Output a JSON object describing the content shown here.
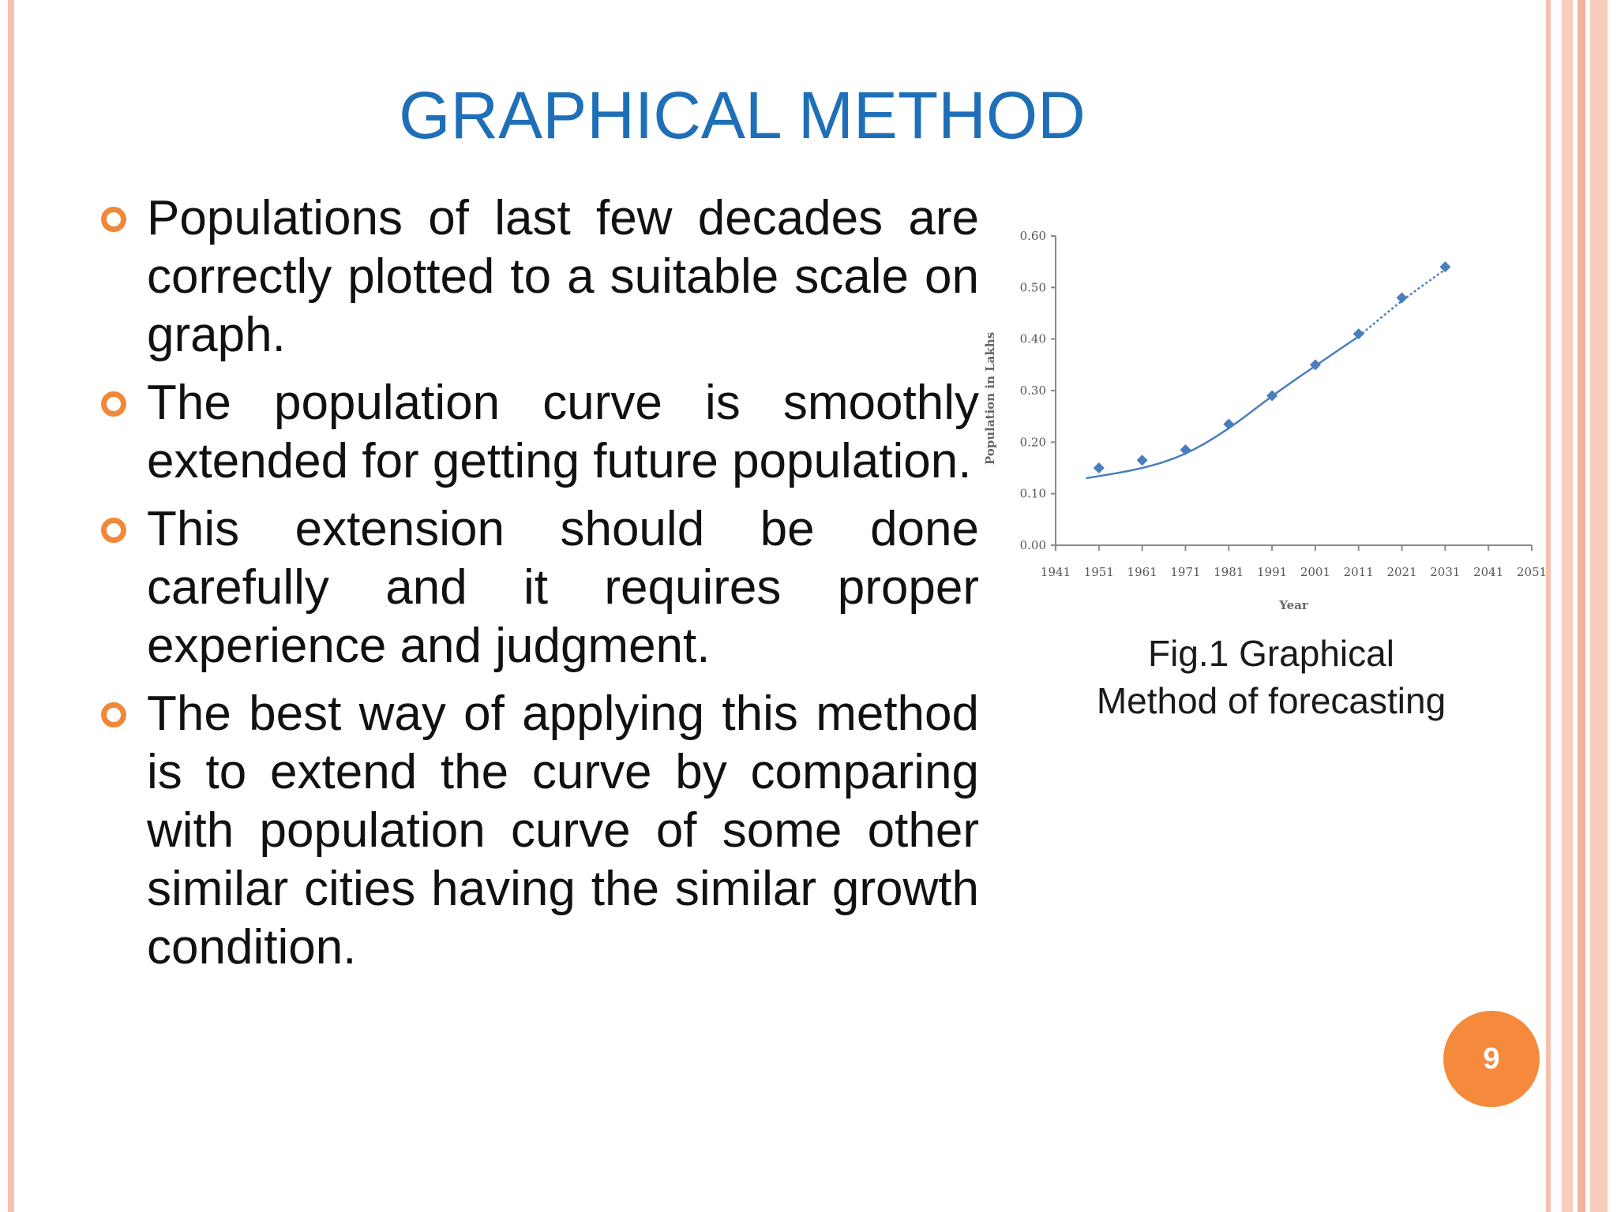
{
  "slide": {
    "title": "GRAPHICAL METHOD",
    "page_number": "9",
    "accent_color": "#f0883a",
    "title_color": "#1f6fb8",
    "bullets": [
      "Populations of last few decades are correctly plotted to a suitable scale on graph.",
      "The population curve is smoothly extended for getting future population.",
      "This extension should be done carefully and it requires proper experience and judgment.",
      "The best way of applying this method is to extend the curve by comparing with population curve of some other similar cities having the similar growth condition."
    ],
    "caption_line1": "Fig.1 Graphical",
    "caption_line2": "Method of forecasting"
  },
  "chart_data": {
    "type": "line",
    "title": "",
    "xlabel": "Year",
    "ylabel": "Population in Lakhs",
    "categories": [
      "1941",
      "1951",
      "1961",
      "1971",
      "1981",
      "1991",
      "2001",
      "2011",
      "2021",
      "2031",
      "2041",
      "2051"
    ],
    "yticks": [
      "0.00",
      "0.10",
      "0.20",
      "0.30",
      "0.40",
      "0.50",
      "0.60"
    ],
    "ylim": [
      0,
      0.6
    ],
    "series": [
      {
        "type": "scatter",
        "x": [
          1951,
          1961,
          1971,
          1981,
          1991,
          2001,
          2011,
          2021,
          2031
        ],
        "values": [
          0.15,
          0.165,
          0.185,
          0.235,
          0.29,
          0.35,
          0.41,
          0.48,
          0.54
        ],
        "color": "#4a7ebb"
      },
      {
        "type": "line",
        "style": "smooth fitted curve",
        "x": [
          1948,
          1961,
          1971,
          1981,
          1991,
          2001,
          2011
        ],
        "values": [
          0.13,
          0.148,
          0.175,
          0.225,
          0.29,
          0.348,
          0.405
        ],
        "color": "#4a7ebb"
      },
      {
        "type": "line",
        "style": "dotted extension",
        "x": [
          2011,
          2021,
          2031
        ],
        "values": [
          0.405,
          0.475,
          0.535
        ],
        "color": "#4a7ebb"
      }
    ],
    "grid": false,
    "legend": "none"
  }
}
